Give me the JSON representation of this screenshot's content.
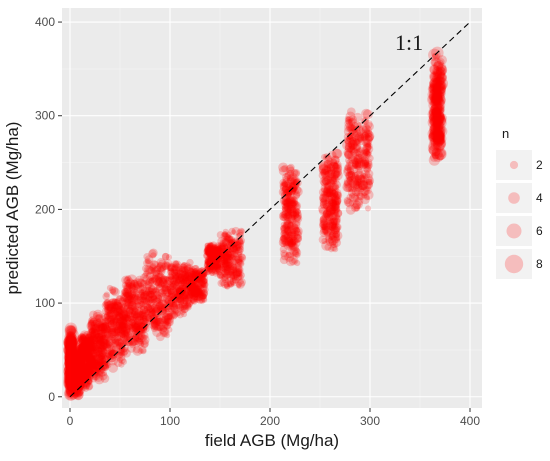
{
  "chart_data": {
    "type": "scatter",
    "title": "",
    "xlabel": "field AGB (Mg/ha)",
    "ylabel": "predicted AGB (Mg/ha)",
    "xlim": [
      -8,
      412
    ],
    "ylim": [
      -12,
      415
    ],
    "x_ticks": [
      0,
      100,
      200,
      300,
      400
    ],
    "y_ticks": [
      0,
      100,
      200,
      300,
      400
    ],
    "grid": true,
    "panel_background": "#ebebeb",
    "point_color": "#ff0000",
    "reference_line": {
      "label": "1:1",
      "style": "dashed",
      "color": "#000000",
      "from": [
        0,
        0
      ],
      "to": [
        400,
        400
      ]
    },
    "annotations": [
      {
        "text": "1:1",
        "x": 325,
        "y": 370
      }
    ],
    "legend": {
      "title": "n",
      "position": "right",
      "entries": [
        2,
        4,
        6,
        8
      ]
    },
    "clusters": [
      {
        "x_range": [
          0,
          2
        ],
        "y_range": [
          0,
          75
        ],
        "n": 8
      },
      {
        "x_range": [
          2,
          10
        ],
        "y_range": [
          0,
          50
        ],
        "n": 6
      },
      {
        "x_range": [
          10,
          20
        ],
        "y_range": [
          5,
          70
        ],
        "n": 5
      },
      {
        "x_range": [
          20,
          35
        ],
        "y_range": [
          15,
          90
        ],
        "n": 5
      },
      {
        "x_range": [
          35,
          55
        ],
        "y_range": [
          30,
          120
        ],
        "n": 5
      },
      {
        "x_range": [
          55,
          75
        ],
        "y_range": [
          45,
          130
        ],
        "n": 5
      },
      {
        "x_range": [
          75,
          100
        ],
        "y_range": [
          60,
          155
        ],
        "n": 5
      },
      {
        "x_range": [
          100,
          120
        ],
        "y_range": [
          85,
          145
        ],
        "n": 4
      },
      {
        "x_range": [
          120,
          135
        ],
        "y_range": [
          100,
          140
        ],
        "n": 3
      },
      {
        "x_range": [
          137,
          150
        ],
        "y_range": [
          130,
          165
        ],
        "n": 3
      },
      {
        "x_range": [
          150,
          172
        ],
        "y_range": [
          115,
          180
        ],
        "n": 4
      },
      {
        "x_range": [
          213,
          228
        ],
        "y_range": [
          140,
          250
        ],
        "n": 5
      },
      {
        "x_range": [
          253,
          268
        ],
        "y_range": [
          155,
          265
        ],
        "n": 5
      },
      {
        "x_range": [
          277,
          300
        ],
        "y_range": [
          195,
          310
        ],
        "n": 5
      },
      {
        "x_range": [
          363,
          372
        ],
        "y_range": [
          250,
          370
        ],
        "n": 7
      }
    ]
  }
}
